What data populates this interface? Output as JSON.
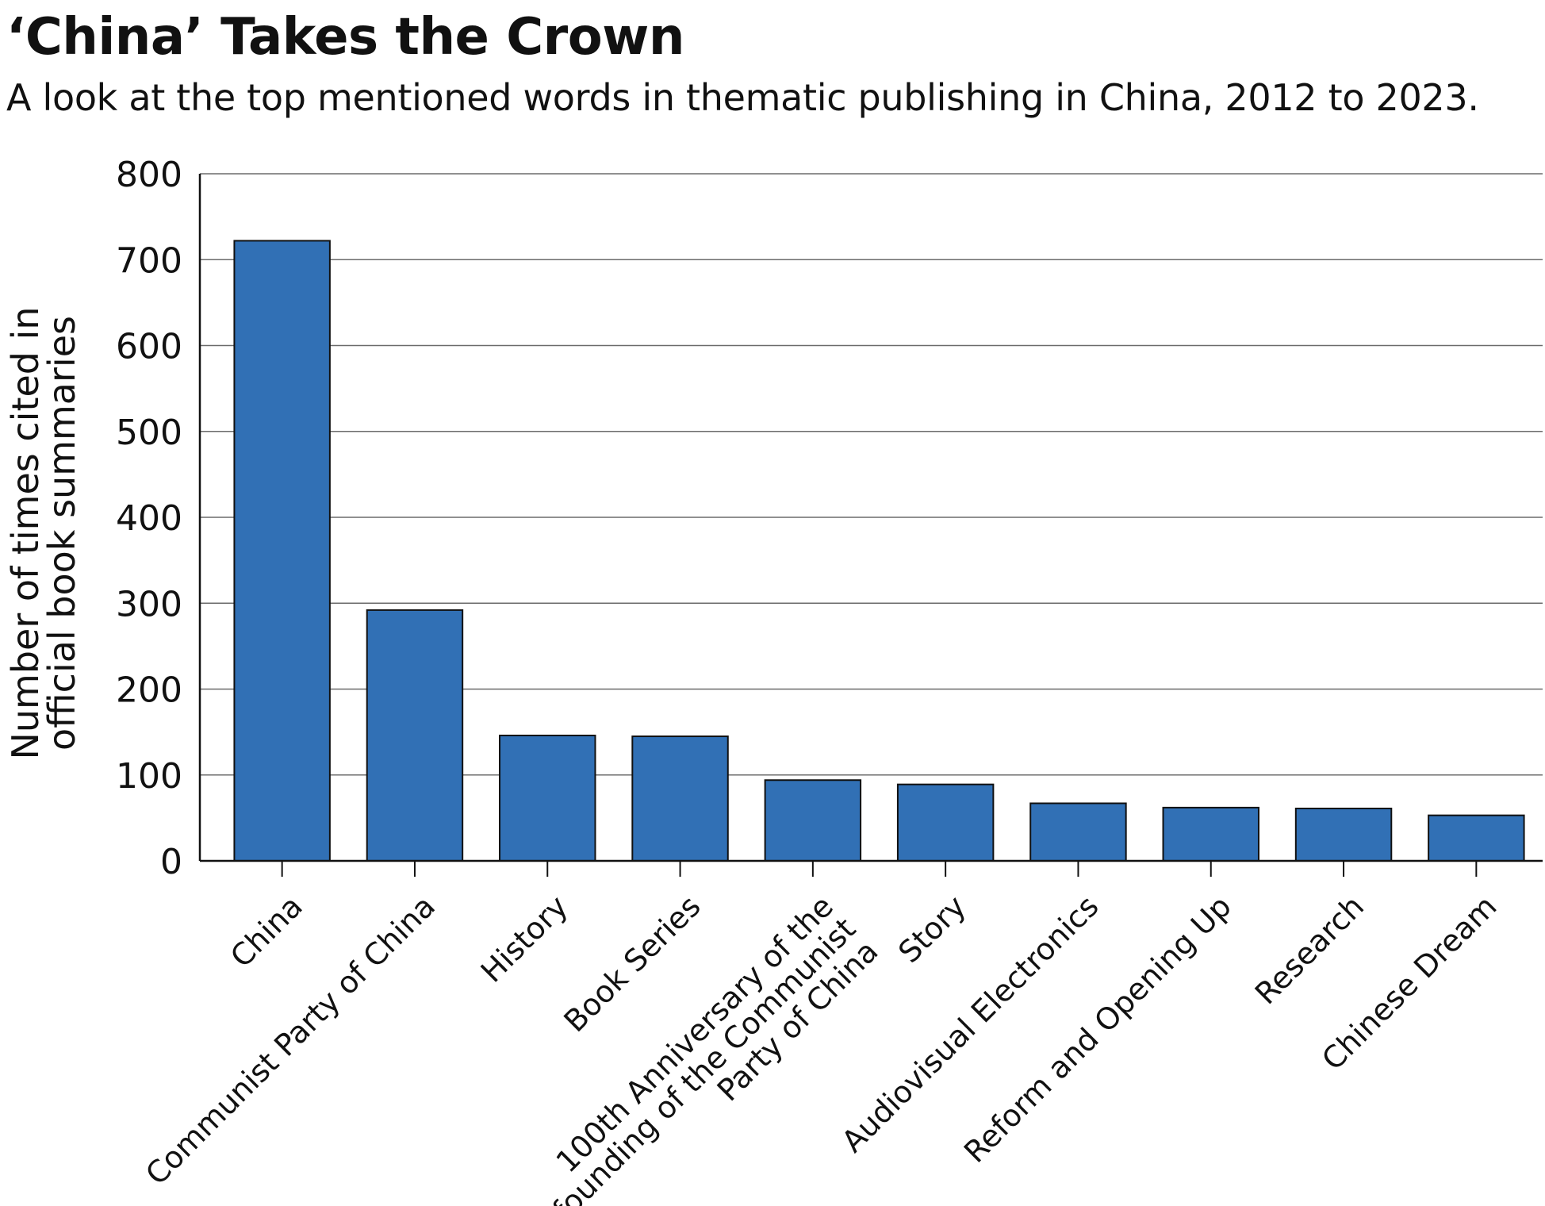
{
  "header": {
    "title": "‘China’ Takes the Crown",
    "subtitle": "A look at the top mentioned words in thematic publishing in China, 2012 to 2023."
  },
  "chart_data": {
    "type": "bar",
    "title": "‘China’ Takes the Crown",
    "subtitle": "A look at the top mentioned words in thematic publishing in China, 2012 to 2023.",
    "ylabel_lines": [
      "Number of times cited in",
      "official book summaries"
    ],
    "xlabel": "",
    "categories": [
      [
        "China"
      ],
      [
        "Communist Party of  China"
      ],
      [
        "History"
      ],
      [
        "Book Series"
      ],
      [
        "100th Anniversary of the",
        "founding of the Communist",
        "Party of China"
      ],
      [
        "Story"
      ],
      [
        "Audiovisual Electronics"
      ],
      [
        "Reform and Opening Up"
      ],
      [
        "Research"
      ],
      [
        "Chinese Dream"
      ]
    ],
    "values": [
      722,
      292,
      146,
      145,
      94,
      89,
      67,
      62,
      61,
      53
    ],
    "ylim": [
      0,
      800
    ],
    "yticks": [
      0,
      100,
      200,
      300,
      400,
      500,
      600,
      700,
      800
    ],
    "grid": true,
    "legend": "none",
    "bar_color": "#3170b5",
    "bar_edge_color": "#111111"
  }
}
